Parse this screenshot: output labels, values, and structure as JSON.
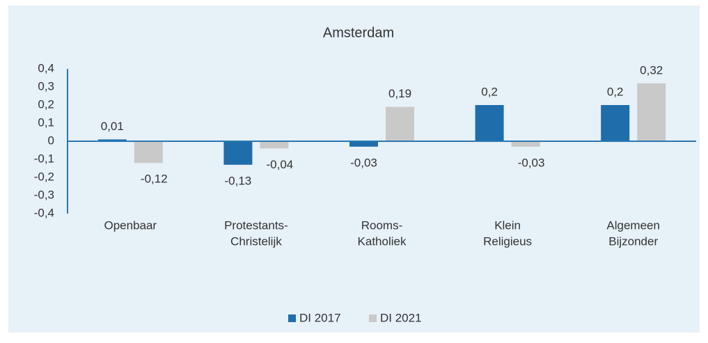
{
  "chart_data": {
    "type": "bar",
    "title": "Amsterdam",
    "categories": [
      [
        "Openbaar"
      ],
      [
        "Protestants-",
        "Christelijk"
      ],
      [
        "Rooms-",
        "Katholiek"
      ],
      [
        "Klein",
        "Religieus"
      ],
      [
        "Algemeen",
        "Bijzonder"
      ]
    ],
    "series": [
      {
        "name": "DI 2017",
        "color": "#1f6dab",
        "values": [
          0.01,
          -0.13,
          -0.03,
          0.2,
          0.2
        ],
        "value_labels": [
          "0,01",
          "-0,13",
          "-0,03",
          "0,2",
          "0,2"
        ]
      },
      {
        "name": "DI 2021",
        "color": "#c9c9c9",
        "values": [
          -0.12,
          -0.04,
          0.19,
          -0.03,
          0.32
        ],
        "value_labels": [
          "-0,12",
          "-0,04",
          "0,19",
          "-0,03",
          "0,32"
        ]
      }
    ],
    "ylim": [
      -0.4,
      0.4
    ],
    "yticks": [
      {
        "value": -0.4,
        "label": "-0,4"
      },
      {
        "value": -0.3,
        "label": "-0,3"
      },
      {
        "value": -0.2,
        "label": "-0,2"
      },
      {
        "value": -0.1,
        "label": "-0,1"
      },
      0,
      {
        "value": 0.1,
        "label": "0,1"
      },
      {
        "value": 0.2,
        "label": "0,2"
      },
      {
        "value": 0.3,
        "label": "0,3"
      },
      {
        "value": 0.4,
        "label": "0,4"
      }
    ],
    "grid": false,
    "legend": "bottom"
  }
}
